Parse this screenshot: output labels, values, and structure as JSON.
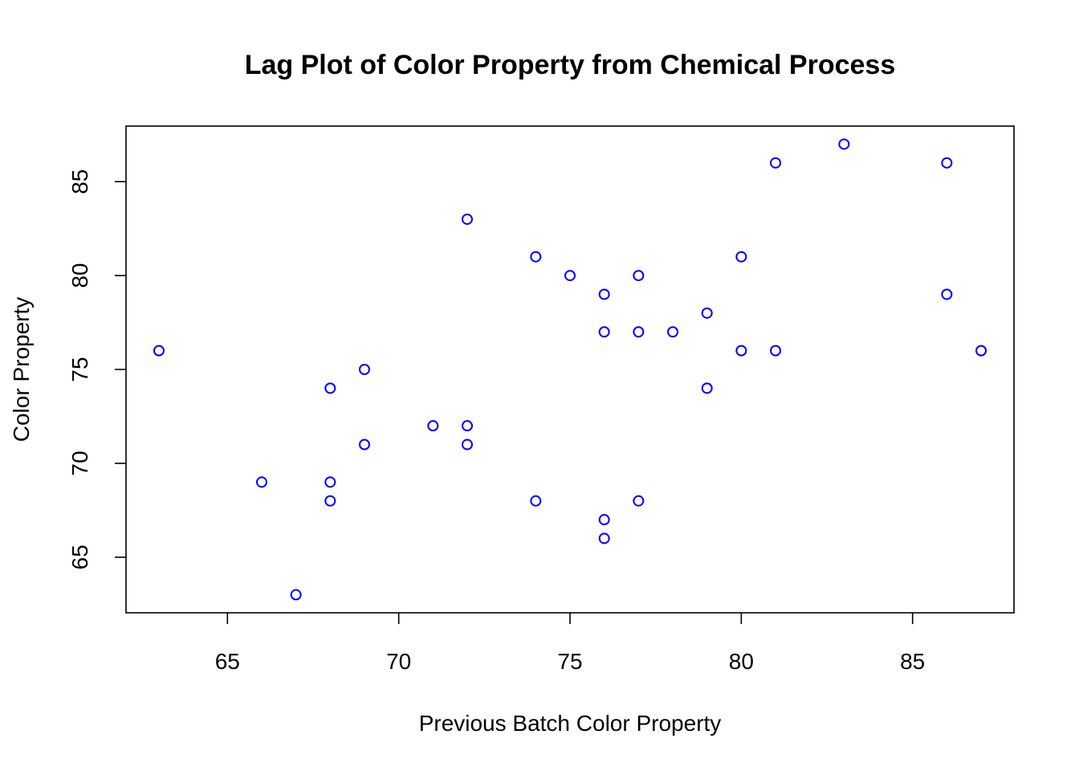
{
  "chart_data": {
    "type": "scatter",
    "title": "Lag Plot of Color Property from Chemical Process",
    "xlabel": "Previous Batch Color Property",
    "ylabel": "Color Property",
    "xlim": [
      62.04,
      87.96
    ],
    "ylim": [
      62.04,
      87.96
    ],
    "xticks": [
      65,
      70,
      75,
      80,
      85
    ],
    "yticks": [
      65,
      70,
      75,
      80,
      85
    ],
    "point_color": "#0000ff",
    "marker": "open-circle",
    "grid": false,
    "legend": false,
    "points": [
      {
        "x": 63,
        "y": 76
      },
      {
        "x": 66,
        "y": 69
      },
      {
        "x": 67,
        "y": 63
      },
      {
        "x": 68,
        "y": 74
      },
      {
        "x": 68,
        "y": 69
      },
      {
        "x": 68,
        "y": 68
      },
      {
        "x": 69,
        "y": 75
      },
      {
        "x": 69,
        "y": 71
      },
      {
        "x": 71,
        "y": 72
      },
      {
        "x": 72,
        "y": 83
      },
      {
        "x": 72,
        "y": 72
      },
      {
        "x": 72,
        "y": 71
      },
      {
        "x": 74,
        "y": 81
      },
      {
        "x": 74,
        "y": 68
      },
      {
        "x": 75,
        "y": 80
      },
      {
        "x": 76,
        "y": 79
      },
      {
        "x": 76,
        "y": 77
      },
      {
        "x": 76,
        "y": 67
      },
      {
        "x": 76,
        "y": 66
      },
      {
        "x": 77,
        "y": 80
      },
      {
        "x": 77,
        "y": 77
      },
      {
        "x": 77,
        "y": 68
      },
      {
        "x": 78,
        "y": 77
      },
      {
        "x": 79,
        "y": 78
      },
      {
        "x": 79,
        "y": 74
      },
      {
        "x": 80,
        "y": 81
      },
      {
        "x": 80,
        "y": 76
      },
      {
        "x": 81,
        "y": 86
      },
      {
        "x": 81,
        "y": 76
      },
      {
        "x": 83,
        "y": 87
      },
      {
        "x": 86,
        "y": 86
      },
      {
        "x": 86,
        "y": 79
      },
      {
        "x": 87,
        "y": 76
      }
    ]
  }
}
